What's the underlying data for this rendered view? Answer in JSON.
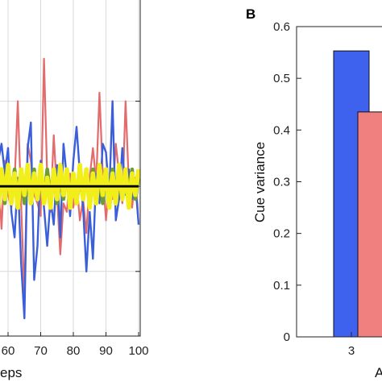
{
  "chart_data": [
    {
      "type": "line",
      "panel_label": "",
      "x_ticks": [
        "60",
        "70",
        "80",
        "90",
        "100"
      ],
      "xlabel_fragment": "eps",
      "ylabel": "",
      "xlim": [
        51,
        100
      ],
      "ylim": [
        -3.5,
        4
      ],
      "grid": true,
      "series": [
        {
          "color": "#e36b6b",
          "x": [
            51,
            52,
            53,
            54,
            55,
            56,
            57,
            58,
            59,
            60,
            61,
            62,
            63,
            64,
            65,
            66,
            67,
            68,
            69,
            70,
            71,
            72,
            73,
            74,
            75,
            76,
            77,
            78,
            79,
            80,
            81,
            82,
            83,
            84,
            85,
            86,
            87,
            88,
            89,
            90,
            91,
            92,
            93,
            94,
            95,
            96,
            97,
            98,
            99,
            100
          ],
          "y": [
            -0.5,
            1.0,
            2.3,
            0.2,
            -0.6,
            0.3,
            0.4,
            -1.0,
            0.6,
            -0.2,
            -0.5,
            0.1,
            2.0,
            -0.4,
            -2.6,
            1.0,
            0.6,
            -0.2,
            -0.4,
            -0.7,
            3.0,
            0.2,
            -0.6,
            1.2,
            -0.2,
            -1.6,
            -0.4,
            -0.6,
            0.3,
            -0.5,
            0.1,
            -0.8,
            -0.3,
            -1.1,
            0.2,
            0.9,
            0.1,
            2.2,
            0.3,
            -0.8,
            0.1,
            -0.3,
            1.0,
            0.3,
            -0.4,
            2.0,
            0.1,
            -0.5,
            0.2,
            -0.9
          ]
        },
        {
          "color": "#3a5fd9",
          "x": [
            51,
            52,
            53,
            54,
            55,
            56,
            57,
            58,
            59,
            60,
            61,
            62,
            63,
            64,
            65,
            66,
            67,
            68,
            69,
            70,
            71,
            72,
            73,
            74,
            75,
            76,
            77,
            78,
            79,
            80,
            81,
            82,
            83,
            84,
            85,
            86,
            87,
            88,
            89,
            90,
            91,
            92,
            93,
            94,
            95,
            96,
            97,
            98,
            99,
            100
          ],
          "y": [
            0.4,
            -0.5,
            -1.5,
            -0.3,
            0.2,
            -1.0,
            0.6,
            1.0,
            0.3,
            0.9,
            -0.6,
            -1.2,
            0.2,
            -1.8,
            -3.1,
            0.9,
            1.5,
            -2.2,
            -1.4,
            0.6,
            -0.5,
            -1.4,
            -0.3,
            -0.9,
            0.5,
            -1.2,
            1.0,
            0.2,
            -0.7,
            0.6,
            1.4,
            0.3,
            -0.5,
            -2.0,
            -0.6,
            -1.7,
            0.3,
            -0.4,
            1.0,
            0.8,
            -0.2,
            2.0,
            -0.8,
            -0.3,
            0.9,
            -0.2,
            0.4,
            -0.3,
            0.1,
            -0.9
          ]
        },
        {
          "color": "#6e9e33",
          "x": [
            51,
            52,
            53,
            54,
            55,
            56,
            57,
            58,
            59,
            60,
            61,
            62,
            63,
            64,
            65,
            66,
            67,
            68,
            69,
            70,
            71,
            72,
            73,
            74,
            75,
            76,
            77,
            78,
            79,
            80,
            81,
            82,
            83,
            84,
            85,
            86,
            87,
            88,
            89,
            90,
            91,
            92,
            93,
            94,
            95,
            96,
            97,
            98,
            99,
            100
          ],
          "y": [
            0.2,
            -0.3,
            0.3,
            -0.2,
            0.4,
            -0.4,
            0.2,
            0.3,
            -0.4,
            0.3,
            -0.2,
            0.4,
            -0.3,
            0.2,
            -0.4,
            0.3,
            -0.2,
            0.4,
            -0.3,
            0.2,
            -0.3,
            0.4,
            -0.2,
            0.3,
            -0.4,
            0.2,
            -0.3,
            0.4,
            -0.2,
            0.3,
            -0.4,
            0.2,
            -0.3,
            0.3,
            -0.2,
            0.4,
            -0.3,
            0.2,
            -0.4,
            0.3,
            -0.2,
            0.4,
            -0.3,
            0.2,
            -0.3,
            0.3,
            -0.2,
            0.4,
            -0.3,
            0.2
          ]
        },
        {
          "color": "#f2ee1a",
          "x": [
            51,
            52,
            53,
            54,
            55,
            56,
            57,
            58,
            59,
            60,
            61,
            62,
            63,
            64,
            65,
            66,
            67,
            68,
            69,
            70,
            71,
            72,
            73,
            74,
            75,
            76,
            77,
            78,
            79,
            80,
            81,
            82,
            83,
            84,
            85,
            86,
            87,
            88,
            89,
            90,
            91,
            92,
            93,
            94,
            95,
            96,
            97,
            98,
            99,
            100
          ],
          "y": [
            -0.3,
            0.4,
            -0.2,
            0.5,
            -0.4,
            0.3,
            -0.5,
            0.4,
            -0.3,
            0.5,
            -0.4,
            0.3,
            -0.5,
            0.4,
            -0.2,
            0.5,
            -0.4,
            0.3,
            -0.3,
            0.5,
            -0.4,
            0.2,
            -0.5,
            0.4,
            -0.3,
            0.5,
            -0.2,
            0.4,
            -0.5,
            0.3,
            -0.4,
            0.5,
            -0.3,
            0.4,
            -0.5,
            0.3,
            -0.4,
            0.5,
            -0.2,
            0.4,
            -0.5,
            0.3,
            -0.4,
            0.5,
            -0.3,
            0.4,
            -0.5,
            0.3,
            -0.2,
            0.4
          ]
        },
        {
          "color": "#000000",
          "x": [
            51,
            100
          ],
          "y": [
            0,
            0
          ]
        }
      ]
    },
    {
      "type": "bar",
      "panel_label": "B",
      "ylabel": "Cue variance",
      "ylim": [
        0,
        0.6
      ],
      "y_ticks": [
        "0",
        "0.1",
        "0.2",
        "0.3",
        "0.4",
        "0.5",
        "0.6"
      ],
      "x_ticks": [
        "3"
      ],
      "xlabel_fragment": "A",
      "grid": false,
      "bars": [
        {
          "position": 3,
          "value": 0.553,
          "color": "#3f62ee"
        },
        {
          "position": 3.75,
          "value": 0.435,
          "color": "#f08080"
        }
      ]
    }
  ]
}
